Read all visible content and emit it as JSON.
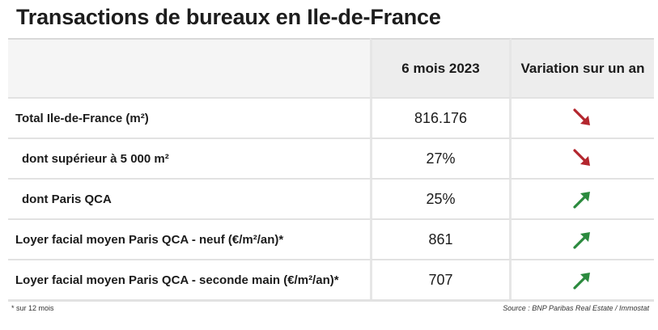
{
  "title": "Transactions de bureaux en Ile-de-France",
  "columns": [
    "",
    "6 mois 2023",
    "Variation sur un an"
  ],
  "rows": [
    {
      "label": "Total Ile-de-France (m²)",
      "value": "816.176",
      "trend": "down",
      "indent": false
    },
    {
      "label": "dont supérieur à 5 000 m²",
      "value": "27%",
      "trend": "down",
      "indent": true
    },
    {
      "label": "dont Paris QCA",
      "value": "25%",
      "trend": "up",
      "indent": true
    },
    {
      "label": "Loyer facial moyen Paris QCA - neuf (€/m²/an)*",
      "value": "861",
      "trend": "up",
      "indent": false
    },
    {
      "label": "Loyer facial moyen Paris QCA - seconde main (€/m²/an)*",
      "value": "707",
      "trend": "up",
      "indent": false
    }
  ],
  "footnote": "* sur 12 mois",
  "source": "Source : BNP Paribas Real Estate / Immostat",
  "colors": {
    "up": "#2b8a3e",
    "down": "#b3262e"
  },
  "icons": {
    "up": "arrow-up-right-icon",
    "down": "arrow-down-right-icon"
  }
}
